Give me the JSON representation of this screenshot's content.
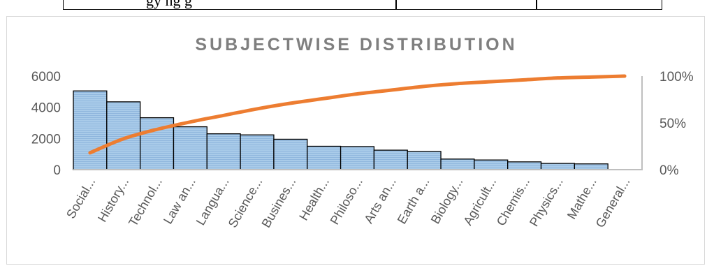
{
  "table_fragment": {
    "cell_text": "gy    ng      g"
  },
  "chart_data": {
    "type": "bar",
    "title": "SUBJECTWISE DISTRIBUTION",
    "categories": [
      "Social...",
      "History...",
      "Technol...",
      "Law an...",
      "Langua...",
      "Science...",
      "Busines...",
      "Health...",
      "Philoso...",
      "Arts an...",
      "Earth a...",
      "Biology...",
      "Agricult...",
      "Chemis...",
      "Physics...",
      "Mathe...",
      "General..."
    ],
    "series": [
      {
        "type": "bar",
        "values": [
          5050,
          4350,
          3330,
          2750,
          2300,
          2230,
          1950,
          1500,
          1480,
          1250,
          1170,
          680,
          620,
          500,
          400,
          370,
          0
        ]
      },
      {
        "type": "line",
        "values": [
          0.18,
          0.33,
          0.43,
          0.51,
          0.58,
          0.65,
          0.71,
          0.76,
          0.81,
          0.85,
          0.89,
          0.92,
          0.94,
          0.96,
          0.98,
          0.99,
          1.0
        ]
      }
    ],
    "ylim": [
      0,
      6000
    ],
    "yticks": [
      "0",
      "2000",
      "4000",
      "6000"
    ],
    "y2lim": [
      0,
      1
    ],
    "y2ticks": [
      "0%",
      "50%",
      "100%"
    ],
    "colors": {
      "bar_fill": "#9dc3e6",
      "bar_stroke": "#000000",
      "line": "#ed7d31",
      "axis": "#bfbfbf"
    }
  }
}
